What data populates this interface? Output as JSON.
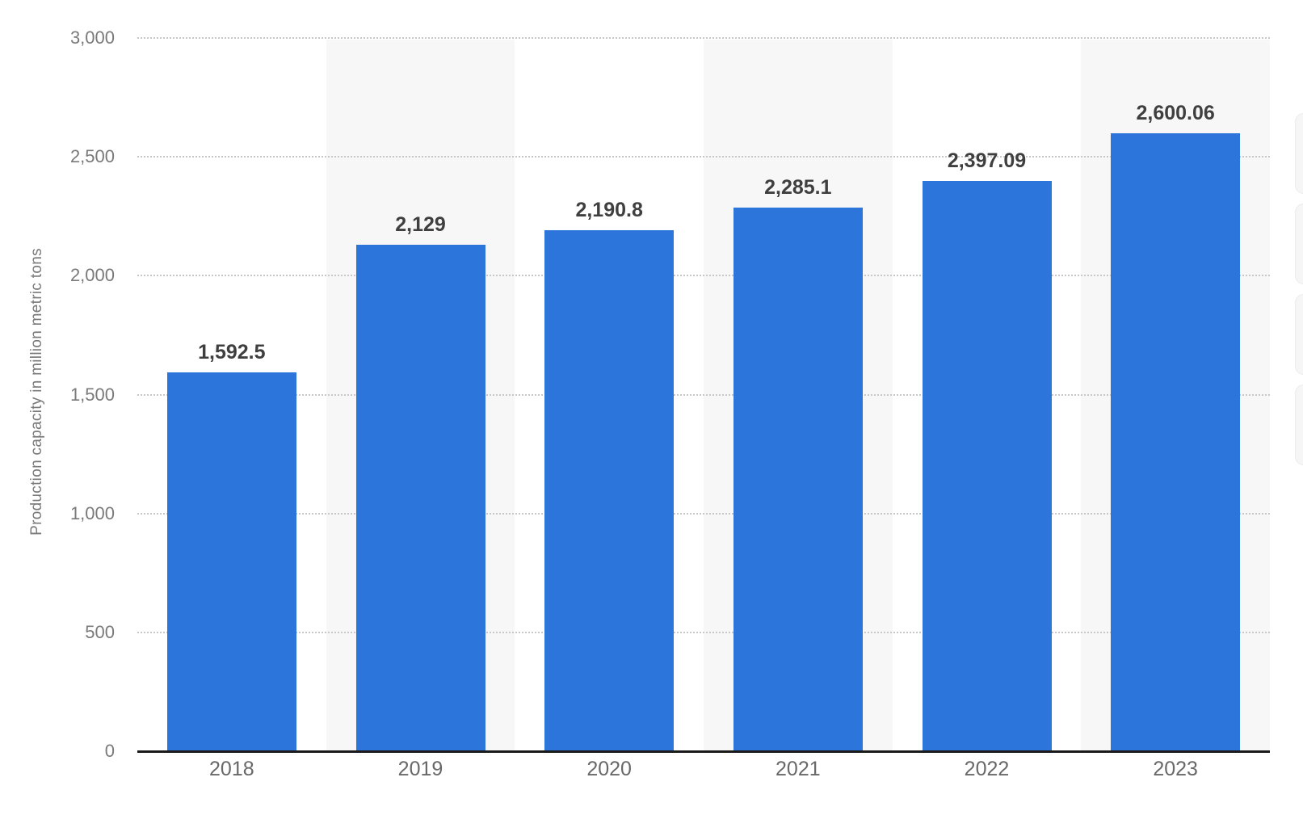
{
  "chart_data": {
    "type": "bar",
    "title": "",
    "ylabel": "Production capacity in million metric tons",
    "xlabel": "",
    "categories": [
      "2018",
      "2019",
      "2020",
      "2021",
      "2022",
      "2023"
    ],
    "values": [
      1592.5,
      2129,
      2190.8,
      2285.1,
      2397.09,
      2600.06
    ],
    "value_labels": [
      "1,592.5",
      "2,129",
      "2,190.8",
      "2,285.1",
      "2,397.09",
      "2,600.06"
    ],
    "ylim": [
      0,
      3000
    ],
    "yticks": [
      {
        "value": 3000,
        "label": "3,000"
      },
      {
        "value": 2500,
        "label": "2,500"
      },
      {
        "value": 2000,
        "label": "2,000"
      },
      {
        "value": 1500,
        "label": "1,500"
      },
      {
        "value": 1000,
        "label": "1,000"
      },
      {
        "value": 500,
        "label": "500"
      },
      {
        "value": 0,
        "label": "0"
      }
    ],
    "grid": "horizontal-dotted",
    "legend": "none",
    "shaded_column_indexes": [
      1,
      3,
      5
    ],
    "colors": {
      "bar": "#2c75db",
      "column_band": "#f7f7f7",
      "grid_dots": "#c7c7c7",
      "axis_line": "#1a1a1a",
      "tick_text": "#7a7a7a",
      "category_text": "#686868",
      "value_text": "#3f3f3f",
      "ylabel_text": "#7a7a7a"
    }
  }
}
